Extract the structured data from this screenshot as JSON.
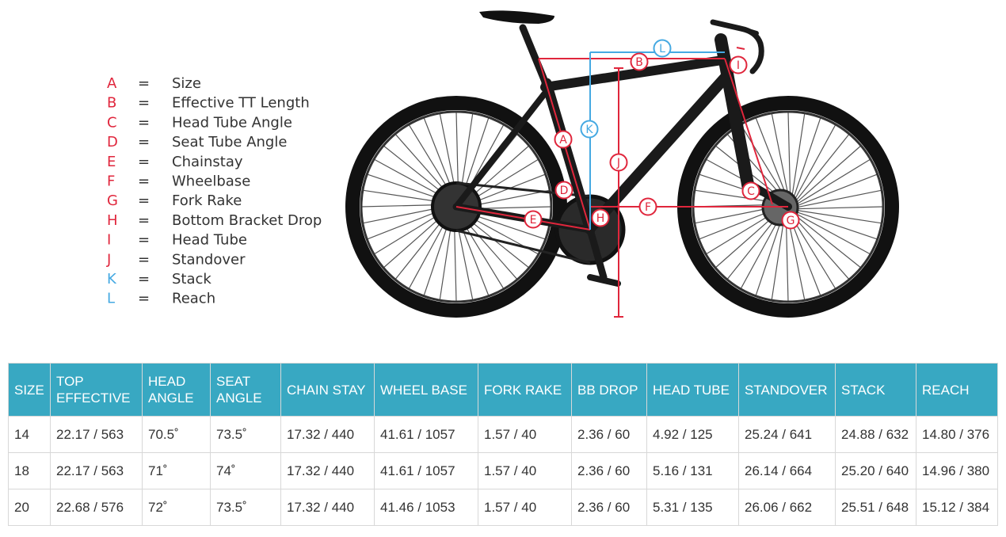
{
  "legend": {
    "items": [
      {
        "letter": "A",
        "sep": "=",
        "label": "Size"
      },
      {
        "letter": "B",
        "sep": "=",
        "label": "Effective TT Length"
      },
      {
        "letter": "C",
        "sep": "=",
        "label": "Head Tube Angle"
      },
      {
        "letter": "D",
        "sep": "=",
        "label": "Seat Tube Angle"
      },
      {
        "letter": "E",
        "sep": "=",
        "label": "Chainstay"
      },
      {
        "letter": "F",
        "sep": "=",
        "label": "Wheelbase"
      },
      {
        "letter": "G",
        "sep": "=",
        "label": "Fork Rake"
      },
      {
        "letter": "H",
        "sep": "=",
        "label": "Bottom Bracket Drop"
      },
      {
        "letter": "I",
        "sep": "=",
        "label": "Head Tube"
      },
      {
        "letter": "J",
        "sep": "=",
        "label": "Standover"
      },
      {
        "letter": "K",
        "sep": "=",
        "label": "Stack"
      },
      {
        "letter": "L",
        "sep": "=",
        "label": "Reach"
      }
    ]
  },
  "table": {
    "header": [
      "SIZE",
      "TOP EFFECTIVE",
      "HEAD ANGLE",
      "SEAT ANGLE",
      "CHAIN STAY",
      "WHEEL BASE",
      "FORK RAKE",
      "BB DROP",
      "HEAD TUBE",
      "STANDOVER",
      "STACK",
      "REACH"
    ],
    "rows": [
      [
        "14",
        "22.17 / 563",
        "70.5˚",
        "73.5˚",
        "17.32 / 440",
        "41.61 / 1057",
        "1.57 / 40",
        "2.36 / 60",
        "4.92 / 125",
        "25.24 / 641",
        "24.88 / 632",
        "14.80 / 376"
      ],
      [
        "18",
        "22.17 / 563",
        "71˚",
        "74˚",
        "17.32 / 440",
        "41.61 / 1057",
        "1.57 / 40",
        "2.36 / 60",
        "5.16 / 131",
        "26.14 / 664",
        "25.20 / 640",
        "14.96 / 380"
      ],
      [
        "20",
        "22.68 / 576",
        "72˚",
        "73.5˚",
        "17.32 / 440",
        "41.46 / 1053",
        "1.57 / 40",
        "2.36 / 60",
        "5.31 / 135",
        "26.06 / 662",
        "25.51 / 648",
        "15.12 / 384"
      ]
    ]
  }
}
